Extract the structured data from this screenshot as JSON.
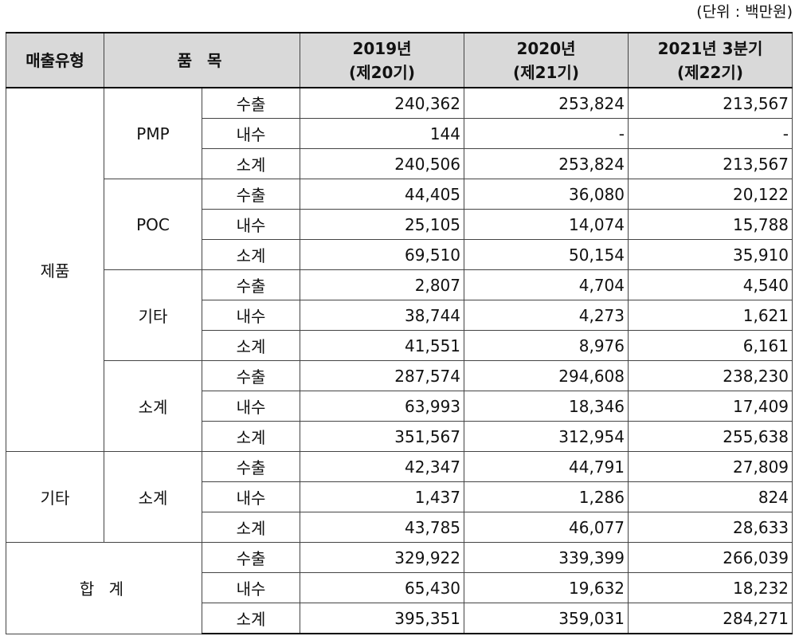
{
  "unit_note": "(단위 : 백만원)",
  "table": {
    "headers": {
      "type": "매출유형",
      "item": "품 목",
      "y2019_line1": "2019년",
      "y2019_line2": "(제20기)",
      "y2020_line1": "2020년",
      "y2020_line2": "(제21기)",
      "y2021_line1": "2021년 3분기",
      "y2021_line2": "(제22기)"
    },
    "groups": [
      {
        "type": "제품",
        "items": [
          {
            "name": "PMP",
            "rows": [
              {
                "kind": "수출",
                "v2019": "240,362",
                "v2020": "253,824",
                "v2021": "213,567"
              },
              {
                "kind": "내수",
                "v2019": "144",
                "v2020": "-",
                "v2021": "-"
              },
              {
                "kind": "소계",
                "v2019": "240,506",
                "v2020": "253,824",
                "v2021": "213,567"
              }
            ]
          },
          {
            "name": "POC",
            "rows": [
              {
                "kind": "수출",
                "v2019": "44,405",
                "v2020": "36,080",
                "v2021": "20,122"
              },
              {
                "kind": "내수",
                "v2019": "25,105",
                "v2020": "14,074",
                "v2021": "15,788"
              },
              {
                "kind": "소계",
                "v2019": "69,510",
                "v2020": "50,154",
                "v2021": "35,910"
              }
            ]
          },
          {
            "name": "기타",
            "rows": [
              {
                "kind": "수출",
                "v2019": "2,807",
                "v2020": "4,704",
                "v2021": "4,540"
              },
              {
                "kind": "내수",
                "v2019": "38,744",
                "v2020": "4,273",
                "v2021": "1,621"
              },
              {
                "kind": "소계",
                "v2019": "41,551",
                "v2020": "8,976",
                "v2021": "6,161"
              }
            ]
          },
          {
            "name": "소계",
            "rows": [
              {
                "kind": "수출",
                "v2019": "287,574",
                "v2020": "294,608",
                "v2021": "238,230"
              },
              {
                "kind": "내수",
                "v2019": "63,993",
                "v2020": "18,346",
                "v2021": "17,409"
              },
              {
                "kind": "소계",
                "v2019": "351,567",
                "v2020": "312,954",
                "v2021": "255,638"
              }
            ]
          }
        ]
      },
      {
        "type": "기타",
        "items": [
          {
            "name": "소계",
            "rows": [
              {
                "kind": "수출",
                "v2019": "42,347",
                "v2020": "44,791",
                "v2021": "27,809"
              },
              {
                "kind": "내수",
                "v2019": "1,437",
                "v2020": "1,286",
                "v2021": "824"
              },
              {
                "kind": "소계",
                "v2019": "43,785",
                "v2020": "46,077",
                "v2021": "28,633"
              }
            ]
          }
        ]
      }
    ],
    "total": {
      "label": "합 계",
      "rows": [
        {
          "kind": "수출",
          "v2019": "329,922",
          "v2020": "339,399",
          "v2021": "266,039"
        },
        {
          "kind": "내수",
          "v2019": "65,430",
          "v2020": "19,632",
          "v2021": "18,232"
        },
        {
          "kind": "소계",
          "v2019": "395,351",
          "v2020": "359,031",
          "v2021": "284,271"
        }
      ]
    }
  }
}
